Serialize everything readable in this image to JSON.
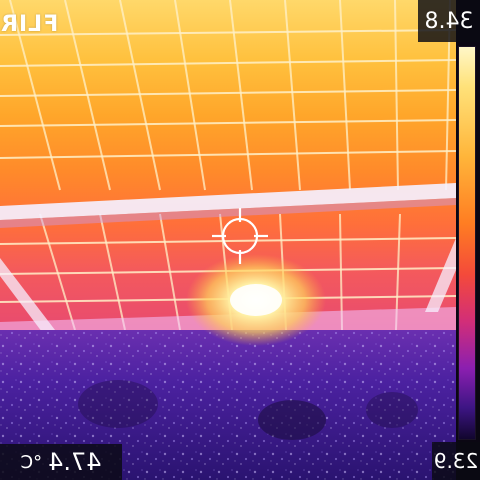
{
  "brand": {
    "logo_text": "FLIR"
  },
  "readouts": {
    "max_temp": "34.8",
    "min_temp": "23.9",
    "spot_temp_value": "47.4",
    "spot_temp_unit": "°C"
  },
  "palette": {
    "name": "iron",
    "colors": [
      "#fff7c8",
      "#ffe27a",
      "#ffb53a",
      "#ff7d22",
      "#f44a3a",
      "#d22e78",
      "#8b1fb0",
      "#3d1584",
      "#12062e"
    ]
  },
  "icons": {
    "spot_marker": "crosshair-icon"
  }
}
